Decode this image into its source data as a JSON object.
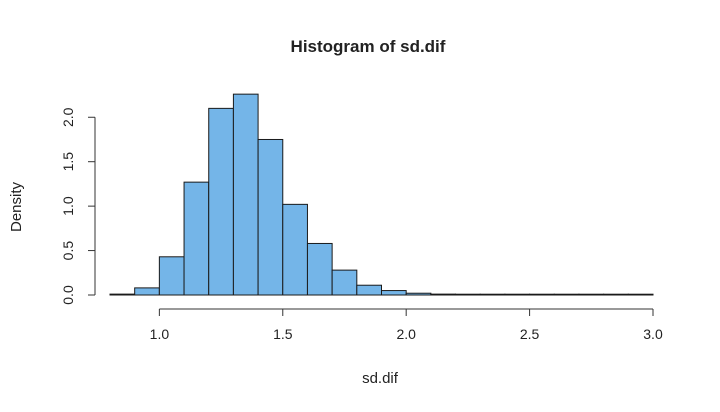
{
  "chart_data": {
    "type": "bar",
    "title": "Histogram of sd.dif",
    "xlabel": "sd.dif",
    "ylabel": "Density",
    "xlim": [
      0.8,
      3.0
    ],
    "ylim": [
      0,
      2.3
    ],
    "x_ticks": [
      1.0,
      1.5,
      2.0,
      2.5,
      3.0
    ],
    "x_tick_labels": [
      "1.0",
      "1.5",
      "2.0",
      "2.5",
      "3.0"
    ],
    "y_ticks": [
      0.0,
      0.5,
      1.0,
      1.5,
      2.0
    ],
    "y_tick_labels": [
      "0.0",
      "0.5",
      "1.0",
      "1.5",
      "2.0"
    ],
    "bin_width": 0.1,
    "bin_starts": [
      0.8,
      0.9,
      1.0,
      1.1,
      1.2,
      1.3,
      1.4,
      1.5,
      1.6,
      1.7,
      1.8,
      1.9,
      2.0,
      2.1,
      2.2,
      2.3,
      2.4,
      2.5,
      2.6,
      2.7,
      2.8,
      2.9
    ],
    "values": [
      0.01,
      0.08,
      0.43,
      1.27,
      2.1,
      2.26,
      1.75,
      1.02,
      0.58,
      0.28,
      0.11,
      0.05,
      0.02,
      0.01,
      0.005,
      0.003,
      0.002,
      0.001,
      0.001,
      0.0005,
      0.0005,
      0.0005
    ],
    "grid": false,
    "colors": {
      "bar_fill": "#74B5E8",
      "bar_stroke": "#1a1a1a",
      "axis": "#333333"
    }
  }
}
